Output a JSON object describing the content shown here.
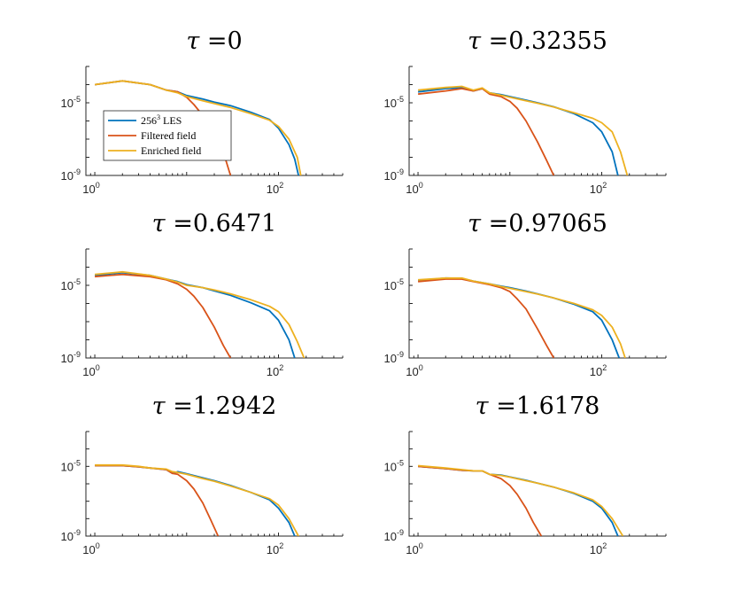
{
  "colors": {
    "les": "#0072BD",
    "filtered": "#D95319",
    "enriched": "#EDB120"
  },
  "chart_data": [
    {
      "type": "line",
      "title_prefix": "τ =",
      "title_value": "0",
      "xscale": "log",
      "yscale": "log",
      "xlim": [
        0.8,
        500
      ],
      "ylim": [
        1e-09,
        0.001
      ],
      "xticks": [
        {
          "base": "10",
          "exp": "0"
        },
        {
          "base": "10",
          "exp": "2"
        }
      ],
      "yticks": [
        {
          "base": "10",
          "exp": "-5"
        },
        {
          "base": "10",
          "exp": "-9"
        }
      ],
      "legend": {
        "position": "bottom-left",
        "entries": [
          {
            "series": "les",
            "label": "256",
            "sup": "3",
            "label_tail": " LES"
          },
          {
            "series": "filtered",
            "label": "Filtered field",
            "sup": "",
            "label_tail": ""
          },
          {
            "series": "enriched",
            "label": "Enriched field",
            "sup": "",
            "label_tail": ""
          }
        ]
      },
      "series": [
        {
          "key": "les",
          "x": [
            1,
            2,
            4,
            6,
            8,
            10,
            15,
            20,
            30,
            50,
            80,
            100,
            130,
            150,
            165
          ],
          "y": [
            0.0001,
            0.00016,
            0.0001,
            5e-05,
            4e-05,
            2.5e-05,
            1.6e-05,
            1.1e-05,
            7e-06,
            3e-06,
            1.2e-06,
            4e-07,
            5e-08,
            8e-09,
            1e-09
          ]
        },
        {
          "key": "filtered",
          "x": [
            1,
            2,
            4,
            6,
            8,
            10,
            12,
            15,
            20,
            25,
            30
          ],
          "y": [
            0.0001,
            0.00016,
            0.0001,
            5e-05,
            4e-05,
            2e-05,
            8e-06,
            2e-06,
            2e-07,
            2e-08,
            1e-09
          ]
        },
        {
          "key": "enriched",
          "x": [
            1,
            2,
            4,
            6,
            8,
            10,
            15,
            20,
            30,
            50,
            80,
            100,
            130,
            160,
            175
          ],
          "y": [
            0.0001,
            0.00016,
            0.0001,
            5e-05,
            3.5e-05,
            2.2e-05,
            1.3e-05,
            9e-06,
            5.5e-06,
            2.5e-06,
            1.1e-06,
            5e-07,
            1e-07,
            1e-08,
            1e-09
          ]
        }
      ]
    },
    {
      "type": "line",
      "title_prefix": "τ =",
      "title_value": "0.32355",
      "xscale": "log",
      "yscale": "log",
      "xlim": [
        0.8,
        500
      ],
      "ylim": [
        1e-09,
        0.001
      ],
      "xticks": [
        {
          "base": "10",
          "exp": "0"
        },
        {
          "base": "10",
          "exp": "2"
        }
      ],
      "yticks": [
        {
          "base": "10",
          "exp": "-5"
        },
        {
          "base": "10",
          "exp": "-9"
        }
      ],
      "series": [
        {
          "key": "les",
          "x": [
            1,
            2,
            3,
            4,
            5,
            6,
            8,
            10,
            15,
            20,
            30,
            50,
            80,
            100,
            130,
            150
          ],
          "y": [
            4e-05,
            6e-05,
            7e-05,
            4.5e-05,
            6e-05,
            3.5e-05,
            2.8e-05,
            2.2e-05,
            1.4e-05,
            1e-05,
            6e-06,
            2.5e-06,
            8e-07,
            2.5e-07,
            2e-08,
            1e-09
          ]
        },
        {
          "key": "filtered",
          "x": [
            1,
            2,
            3,
            4,
            5,
            6,
            8,
            10,
            12,
            15,
            20,
            25,
            30
          ],
          "y": [
            3e-05,
            4.5e-05,
            6e-05,
            4.5e-05,
            6e-05,
            3e-05,
            2.2e-05,
            1.2e-05,
            5e-06,
            1e-06,
            7e-08,
            7e-09,
            1e-09
          ]
        },
        {
          "key": "enriched",
          "x": [
            1,
            2,
            3,
            4,
            5,
            6,
            8,
            10,
            15,
            20,
            30,
            50,
            80,
            100,
            130,
            160,
            190
          ],
          "y": [
            5e-05,
            7e-05,
            8e-05,
            5e-05,
            6.5e-05,
            3.5e-05,
            2.6e-05,
            2e-05,
            1.3e-05,
            9.5e-06,
            5.8e-06,
            2.8e-06,
            1.4e-06,
            8e-07,
            2.5e-07,
            2e-08,
            1e-09
          ]
        }
      ]
    },
    {
      "type": "line",
      "title_prefix": "τ =",
      "title_value": "0.6471",
      "xscale": "log",
      "yscale": "log",
      "xlim": [
        0.8,
        500
      ],
      "ylim": [
        1e-09,
        0.001
      ],
      "xticks": [
        {
          "base": "10",
          "exp": "0"
        },
        {
          "base": "10",
          "exp": "2"
        }
      ],
      "yticks": [
        {
          "base": "10",
          "exp": "-5"
        },
        {
          "base": "10",
          "exp": "-9"
        }
      ],
      "series": [
        {
          "key": "les",
          "x": [
            1,
            2,
            4,
            6,
            8,
            10,
            15,
            20,
            30,
            50,
            80,
            100,
            130,
            150
          ],
          "y": [
            3.5e-05,
            5e-05,
            3.5e-05,
            2.2e-05,
            1.6e-05,
            1.1e-05,
            7.5e-06,
            5e-06,
            2.8e-06,
            1.1e-06,
            4e-07,
            1.2e-07,
            1e-08,
            1e-09
          ]
        },
        {
          "key": "filtered",
          "x": [
            1,
            2,
            4,
            6,
            8,
            10,
            12,
            15,
            20,
            25,
            30
          ],
          "y": [
            3e-05,
            4e-05,
            3e-05,
            2e-05,
            1.2e-05,
            6e-06,
            2.5e-06,
            6e-07,
            5e-08,
            5e-09,
            1e-09
          ]
        },
        {
          "key": "enriched",
          "x": [
            1,
            2,
            4,
            6,
            8,
            10,
            15,
            20,
            30,
            50,
            80,
            100,
            130,
            160,
            190
          ],
          "y": [
            4e-05,
            5.5e-05,
            3.5e-05,
            2.2e-05,
            1.5e-05,
            1e-05,
            7.5e-06,
            5.5e-06,
            3.4e-06,
            1.6e-06,
            7e-07,
            3.5e-07,
            7e-08,
            8e-09,
            1e-09
          ]
        }
      ]
    },
    {
      "type": "line",
      "title_prefix": "τ =",
      "title_value": "0.97065",
      "xscale": "log",
      "yscale": "log",
      "xlim": [
        0.8,
        500
      ],
      "ylim": [
        1e-09,
        0.001
      ],
      "xticks": [
        {
          "base": "10",
          "exp": "0"
        },
        {
          "base": "10",
          "exp": "2"
        }
      ],
      "yticks": [
        {
          "base": "10",
          "exp": "-5"
        },
        {
          "base": "10",
          "exp": "-9"
        }
      ],
      "series": [
        {
          "key": "les",
          "x": [
            1,
            2,
            3,
            4,
            6,
            8,
            10,
            15,
            20,
            30,
            50,
            80,
            100,
            130,
            155
          ],
          "y": [
            1.8e-05,
            2.5e-05,
            2.4e-05,
            1.7e-05,
            1.2e-05,
            9e-06,
            7.5e-06,
            4.8e-06,
            3.4e-06,
            2e-06,
            9e-07,
            3.5e-07,
            1.2e-07,
            1e-08,
            1e-09
          ]
        },
        {
          "key": "filtered",
          "x": [
            1,
            2,
            3,
            4,
            6,
            8,
            10,
            12,
            15,
            20,
            25,
            30
          ],
          "y": [
            1.6e-05,
            2.2e-05,
            2.2e-05,
            1.6e-05,
            1.1e-05,
            7.5e-06,
            4.5e-06,
            1.8e-06,
            5e-07,
            4e-08,
            5e-09,
            1e-09
          ]
        },
        {
          "key": "enriched",
          "x": [
            1,
            2,
            3,
            4,
            6,
            8,
            10,
            15,
            20,
            30,
            50,
            80,
            100,
            130,
            160,
            180
          ],
          "y": [
            2e-05,
            2.5e-05,
            2.5e-05,
            1.7e-05,
            1.2e-05,
            8.5e-06,
            6.8e-06,
            4.5e-06,
            3.3e-06,
            2e-06,
            1e-06,
            4.5e-07,
            2.2e-07,
            5e-08,
            6e-09,
            1e-09
          ]
        }
      ]
    },
    {
      "type": "line",
      "title_prefix": "τ =",
      "title_value": "1.2942",
      "xscale": "log",
      "yscale": "log",
      "xlim": [
        0.8,
        500
      ],
      "ylim": [
        1e-09,
        0.001
      ],
      "xticks": [
        {
          "base": "10",
          "exp": "0"
        },
        {
          "base": "10",
          "exp": "2"
        }
      ],
      "yticks": [
        {
          "base": "10",
          "exp": "-5"
        },
        {
          "base": "10",
          "exp": "-9"
        }
      ],
      "series": [
        {
          "key": "les",
          "x": [
            1,
            2,
            3,
            4,
            6,
            7,
            8,
            10,
            15,
            20,
            30,
            50,
            80,
            100,
            130,
            150
          ],
          "y": [
            1.1e-05,
            1.1e-05,
            9.5e-06,
            8e-06,
            6.5e-06,
            4e-06,
            5e-06,
            3.8e-06,
            2.2e-06,
            1.5e-06,
            8e-07,
            3.2e-07,
            1.2e-07,
            4e-08,
            6e-09,
            1e-09
          ]
        },
        {
          "key": "filtered",
          "x": [
            1,
            2,
            3,
            4,
            6,
            7,
            8,
            10,
            12,
            15,
            18,
            22
          ],
          "y": [
            1.1e-05,
            1.1e-05,
            9.5e-06,
            8e-06,
            6.5e-06,
            4e-06,
            3.5e-06,
            1.5e-06,
            5e-07,
            8e-08,
            1e-08,
            1e-09
          ]
        },
        {
          "key": "enriched",
          "x": [
            1,
            2,
            3,
            4,
            6,
            7,
            8,
            10,
            15,
            20,
            30,
            50,
            80,
            100,
            130,
            165
          ],
          "y": [
            1.2e-05,
            1.2e-05,
            1e-05,
            8e-06,
            7e-06,
            5e-06,
            4.5e-06,
            3.5e-06,
            2e-06,
            1.4e-06,
            7.5e-07,
            3.2e-07,
            1.4e-07,
            6e-08,
            1e-08,
            1e-09
          ]
        }
      ]
    },
    {
      "type": "line",
      "title_prefix": "τ =",
      "title_value": "1.6178",
      "xscale": "log",
      "yscale": "log",
      "xlim": [
        0.8,
        500
      ],
      "ylim": [
        1e-09,
        0.001
      ],
      "xticks": [
        {
          "base": "10",
          "exp": "0"
        },
        {
          "base": "10",
          "exp": "2"
        }
      ],
      "yticks": [
        {
          "base": "10",
          "exp": "-5"
        },
        {
          "base": "10",
          "exp": "-9"
        }
      ],
      "series": [
        {
          "key": "les",
          "x": [
            1,
            2,
            3,
            4,
            5,
            6,
            8,
            10,
            15,
            20,
            30,
            50,
            80,
            100,
            130,
            150
          ],
          "y": [
            1e-05,
            7.5e-06,
            6e-06,
            5.5e-06,
            5.5e-06,
            3.5e-06,
            3.2e-06,
            2.5e-06,
            1.6e-06,
            1.1e-06,
            6.5e-07,
            2.8e-07,
            1e-07,
            4e-08,
            6e-09,
            1e-09
          ]
        },
        {
          "key": "filtered",
          "x": [
            1,
            2,
            3,
            4,
            5,
            6,
            8,
            10,
            12,
            15,
            18,
            22
          ],
          "y": [
            1e-05,
            7.5e-06,
            6e-06,
            5.5e-06,
            5.5e-06,
            3.5e-06,
            2e-06,
            8e-07,
            2.5e-07,
            4e-08,
            6e-09,
            1e-09
          ]
        },
        {
          "key": "enriched",
          "x": [
            1,
            2,
            3,
            4,
            5,
            6,
            8,
            10,
            15,
            20,
            30,
            50,
            80,
            100,
            130,
            170
          ],
          "y": [
            1.1e-05,
            8e-06,
            6.5e-06,
            5.5e-06,
            5.5e-06,
            3.5e-06,
            3e-06,
            2.4e-06,
            1.5e-06,
            1.1e-06,
            6.5e-07,
            3e-07,
            1.2e-07,
            5e-08,
            1e-08,
            1e-09
          ]
        }
      ]
    }
  ]
}
